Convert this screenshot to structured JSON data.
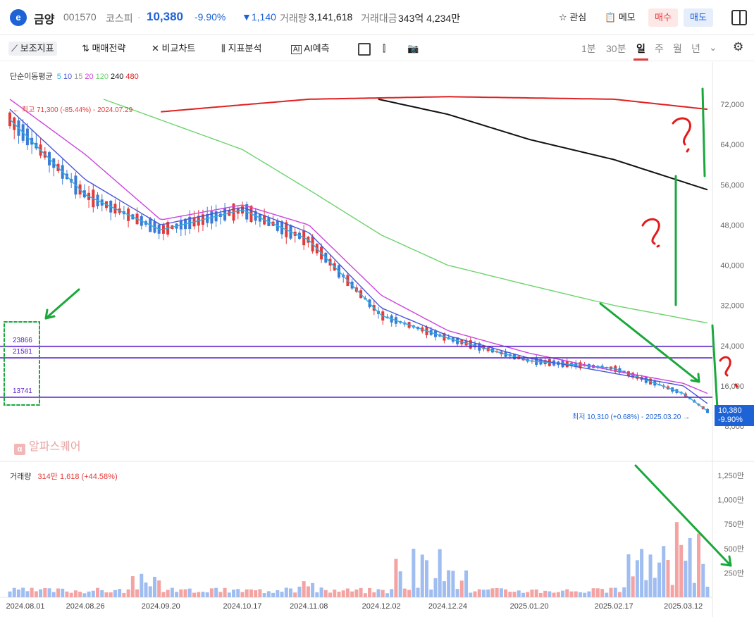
{
  "header": {
    "logo": "e",
    "name": "금양",
    "code": "001570",
    "market": "코스피",
    "price": "10,380",
    "change_pct": "-9.90%",
    "change_val": "▼1,140",
    "volume_label": "거래량",
    "volume_value": "3,141,618",
    "amount_label": "거래대금",
    "amount_value": "343억 4,234만",
    "fav_label": "관심",
    "memo_label": "메모",
    "buy_label": "매수",
    "sell_label": "매도"
  },
  "toolbar": {
    "indicators": "보조지표",
    "strategy": "매매전략",
    "compare": "비교차트",
    "analysis": "지표분석",
    "ai": "AI예측",
    "periods": [
      "1분",
      "30분",
      "일",
      "주",
      "월",
      "년"
    ],
    "selected_period": "일"
  },
  "legend": {
    "title": "단순이동평균",
    "ma": [
      {
        "label": "5",
        "color": "#2bb0e0"
      },
      {
        "label": "10",
        "color": "#4a56d8"
      },
      {
        "label": "15",
        "color": "#9a9a9a"
      },
      {
        "label": "20",
        "color": "#cc44dd"
      },
      {
        "label": "120",
        "color": "#6dd36d"
      },
      {
        "label": "240",
        "color": "#111111"
      },
      {
        "label": "480",
        "color": "#e02020"
      }
    ]
  },
  "annotations": {
    "high": "← 최고 71,300 (-85.44%) - 2024.07.29",
    "low": "최저 10,310 (+0.68%) - 2025.03.20 →",
    "current_price": "10,380",
    "current_pct": "-9.90%",
    "brand": "알파스퀘어",
    "levels": [
      "23866",
      "21581",
      "13741"
    ]
  },
  "volume_legend": {
    "label": "거래량",
    "value": "314만 1,618 (+44.58%)"
  },
  "colors": {
    "up": "#e23b3b",
    "down": "#3a7bd5",
    "vol_up": "#f4a3a3",
    "vol_down": "#9fbdf0",
    "level_line": "#5a22c8",
    "annot_green": "#1aa83c",
    "annot_red": "#e21b1b"
  },
  "chart_data": {
    "type": "line",
    "title": "",
    "price_axis": {
      "ticks": [
        "72,000",
        "64,000",
        "56,000",
        "48,000",
        "40,000",
        "32,000",
        "24,000",
        "16,000",
        "8,000"
      ],
      "ylim": [
        8000,
        72000
      ]
    },
    "volume_axis": {
      "ticks": [
        "1,250만",
        "1,000만",
        "750만",
        "500만",
        "250만"
      ],
      "ylim": [
        0,
        1250
      ]
    },
    "x_ticks": [
      "2024.08.01",
      "2024.08.26",
      "2024.09.20",
      "2024.10.17",
      "2024.11.08",
      "2024.12.02",
      "2024.12.24",
      "2025.01.20",
      "2025.02.17",
      "2025.03.12"
    ],
    "horizontal_levels": [
      23866,
      21581,
      13741
    ],
    "series": [
      {
        "name": "5",
        "x": [
          "2024.08.01",
          "2024.08.26",
          "2024.09.20",
          "2024.10.17",
          "2024.11.08",
          "2024.12.02",
          "2024.12.24",
          "2025.01.20",
          "2025.02.17",
          "2025.03.12",
          "2025.03.20"
        ],
        "values": [
          69000,
          54000,
          47000,
          51000,
          45000,
          30000,
          25500,
          21000,
          19500,
          14500,
          11000
        ]
      },
      {
        "name": "10",
        "x": [
          "2024.08.01",
          "2024.08.26",
          "2024.09.20",
          "2024.10.17",
          "2024.11.08",
          "2024.12.02",
          "2024.12.24",
          "2025.01.20",
          "2025.02.17",
          "2025.03.12",
          "2025.03.20"
        ],
        "values": [
          71000,
          57000,
          48000,
          51500,
          46500,
          31500,
          26000,
          21500,
          18500,
          16000,
          12500
        ]
      },
      {
        "name": "20",
        "x": [
          "2024.08.01",
          "2024.08.26",
          "2024.09.20",
          "2024.10.17",
          "2024.11.08",
          "2024.12.02",
          "2024.12.24",
          "2025.01.20",
          "2025.02.17",
          "2025.03.12",
          "2025.03.20"
        ],
        "values": [
          73000,
          62000,
          49000,
          52000,
          48000,
          34000,
          27000,
          22500,
          19000,
          16500,
          14500
        ]
      },
      {
        "name": "120",
        "x": [
          "2024.09.01",
          "2024.10.17",
          "2024.11.08",
          "2024.12.02",
          "2024.12.24",
          "2025.01.20",
          "2025.02.17",
          "2025.03.20"
        ],
        "values": [
          73000,
          63000,
          55000,
          46000,
          40000,
          36000,
          32000,
          28500
        ]
      },
      {
        "name": "240",
        "x": [
          "2024.12.01",
          "2024.12.24",
          "2025.01.20",
          "2025.02.17",
          "2025.03.20"
        ],
        "values": [
          73000,
          70000,
          65000,
          61000,
          55000
        ]
      },
      {
        "name": "480",
        "x": [
          "2024.09.20",
          "2024.11.08",
          "2024.12.24",
          "2025.02.17",
          "2025.03.20"
        ],
        "values": [
          70500,
          73000,
          73500,
          73000,
          71000
        ]
      }
    ]
  }
}
